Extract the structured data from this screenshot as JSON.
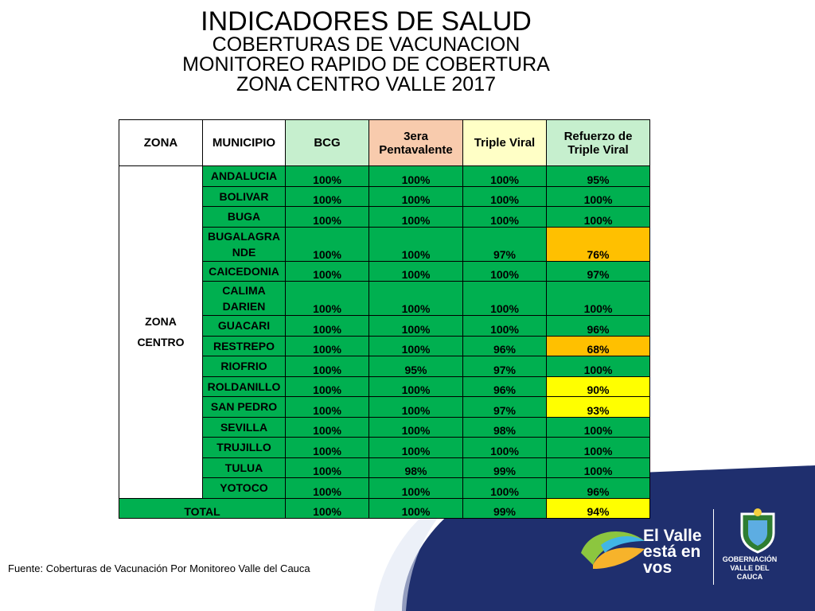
{
  "title": {
    "line1": "INDICADORES DE SALUD",
    "line2": "COBERTURAS DE VACUNACION",
    "line3": "MONITOREO RAPIDO DE COBERTURA",
    "line4": "ZONA CENTRO VALLE 2017"
  },
  "table": {
    "headers": {
      "zona": "ZONA",
      "municipio": "MUNICIPIO",
      "bcg": "BCG",
      "penta_1": "3era",
      "penta_2": "Pentavalente",
      "triple": "Triple Viral",
      "refuerzo_1": "Refuerzo de",
      "refuerzo_2": "Triple Viral"
    },
    "zona_label_1": "ZONA",
    "zona_label_2": "CENTRO",
    "rows": [
      {
        "mun1": "ANDALUCIA",
        "mun2": "",
        "bcg": "100%",
        "penta": "100%",
        "triple": "100%",
        "refuerzo": "95%"
      },
      {
        "mun1": "BOLIVAR",
        "mun2": "",
        "bcg": "100%",
        "penta": "100%",
        "triple": "100%",
        "refuerzo": "100%"
      },
      {
        "mun1": "BUGA",
        "mun2": "",
        "bcg": "100%",
        "penta": "100%",
        "triple": "100%",
        "refuerzo": "100%"
      },
      {
        "mun1": "BUGALAGRA",
        "mun2": "NDE",
        "bcg": "100%",
        "penta": "100%",
        "triple": "97%",
        "refuerzo": "76%"
      },
      {
        "mun1": "CAICEDONIA",
        "mun2": "",
        "bcg": "100%",
        "penta": "100%",
        "triple": "100%",
        "refuerzo": "97%"
      },
      {
        "mun1": "CALIMA",
        "mun2": "DARIEN",
        "bcg": "100%",
        "penta": "100%",
        "triple": "100%",
        "refuerzo": "100%"
      },
      {
        "mun1": "GUACARI",
        "mun2": "",
        "bcg": "100%",
        "penta": "100%",
        "triple": "100%",
        "refuerzo": "96%"
      },
      {
        "mun1": "RESTREPO",
        "mun2": "",
        "bcg": "100%",
        "penta": "100%",
        "triple": "96%",
        "refuerzo": "68%"
      },
      {
        "mun1": "RIOFRIO",
        "mun2": "",
        "bcg": "100%",
        "penta": "95%",
        "triple": "97%",
        "refuerzo": "100%"
      },
      {
        "mun1": "ROLDANILLO",
        "mun2": "",
        "bcg": "100%",
        "penta": "100%",
        "triple": "96%",
        "refuerzo": "90%"
      },
      {
        "mun1": "SAN PEDRO",
        "mun2": "",
        "bcg": "100%",
        "penta": "100%",
        "triple": "97%",
        "refuerzo": "93%"
      },
      {
        "mun1": "SEVILLA",
        "mun2": "",
        "bcg": "100%",
        "penta": "100%",
        "triple": "98%",
        "refuerzo": "100%"
      },
      {
        "mun1": "TRUJILLO",
        "mun2": "",
        "bcg": "100%",
        "penta": "100%",
        "triple": "100%",
        "refuerzo": "100%"
      },
      {
        "mun1": "TULUA",
        "mun2": "",
        "bcg": "100%",
        "penta": "98%",
        "triple": "99%",
        "refuerzo": "100%"
      },
      {
        "mun1": "YOTOCO",
        "mun2": "",
        "bcg": "100%",
        "penta": "100%",
        "triple": "100%",
        "refuerzo": "96%"
      }
    ],
    "total": {
      "label": "TOTAL",
      "bcg": "100%",
      "penta": "100%",
      "triple": "99%",
      "refuerzo": "94%"
    }
  },
  "source": "Fuente: Coberturas de Vacunación Por Monitoreo Valle del Cauca",
  "branding": {
    "slogan_1": "El Valle",
    "slogan_2": "está en",
    "slogan_3": "vos",
    "gob_1": "GOBERNACIÓN",
    "gob_2": "VALLE DEL CAUCA"
  },
  "colors": {
    "green": "#00b050",
    "orange": "#ffc000",
    "yellow": "#ffff00",
    "navy": "#1f2f6e"
  }
}
